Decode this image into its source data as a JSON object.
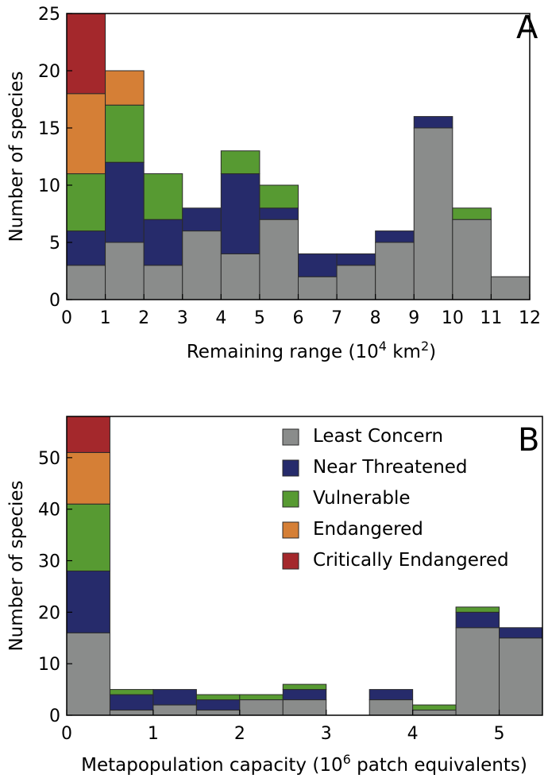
{
  "legend": {
    "entries": [
      {
        "label": "Least Concern",
        "color": "#8a8c8b"
      },
      {
        "label": "Near Threatened",
        "color": "#262b6b"
      },
      {
        "label": "Vulnerable",
        "color": "#579a32"
      },
      {
        "label": "Endangered",
        "color": "#d57f36"
      },
      {
        "label": "Critically Endangered",
        "color": "#a4282c"
      }
    ]
  },
  "chart_data": [
    {
      "type": "bar",
      "stacked": true,
      "panel": "A",
      "xlabel": "Remaining range (10",
      "xlabel_sup1": "4",
      "xlabel_mid": " km",
      "xlabel_sup2": "2",
      "xlabel_end": ")",
      "ylabel": "Number of species",
      "bin_edges": [
        0,
        1,
        2,
        3,
        4,
        5,
        6,
        7,
        8,
        9,
        10,
        11,
        12
      ],
      "xticks": [
        "0",
        "1",
        "2",
        "3",
        "4",
        "5",
        "6",
        "7",
        "8",
        "9",
        "10",
        "11",
        "12"
      ],
      "yticks": [
        "0",
        "5",
        "10",
        "15",
        "20",
        "25"
      ],
      "xlim": [
        0,
        12
      ],
      "ylim": [
        0,
        25
      ],
      "series": [
        {
          "name": "Least Concern",
          "values": [
            3,
            5,
            3,
            6,
            4,
            7,
            2,
            3,
            5,
            15,
            7,
            2
          ]
        },
        {
          "name": "Near Threatened",
          "values": [
            3,
            7,
            4,
            2,
            7,
            1,
            2,
            1,
            1,
            1,
            0,
            0
          ]
        },
        {
          "name": "Vulnerable",
          "values": [
            5,
            5,
            4,
            0,
            2,
            2,
            0,
            0,
            0,
            0,
            1,
            0
          ]
        },
        {
          "name": "Endangered",
          "values": [
            7,
            3,
            0,
            0,
            0,
            0,
            0,
            0,
            0,
            0,
            0,
            0
          ]
        },
        {
          "name": "Critically Endangered",
          "values": [
            7,
            0,
            0,
            0,
            0,
            0,
            0,
            0,
            0,
            0,
            0,
            0
          ]
        }
      ]
    },
    {
      "type": "bar",
      "stacked": true,
      "panel": "B",
      "xlabel": "Metapopulation capacity (10",
      "xlabel_sup1": "6",
      "xlabel_mid": " patch equivalents)",
      "xlabel_sup2": "",
      "xlabel_end": "",
      "ylabel": "Number of species",
      "bin_edges": [
        0,
        0.5,
        1,
        1.5,
        2,
        2.5,
        3,
        3.5,
        4,
        4.5,
        5,
        5.5
      ],
      "xticks": [
        "0",
        "1",
        "2",
        "3",
        "4",
        "5"
      ],
      "xtick_values": [
        0,
        1,
        2,
        3,
        4,
        5
      ],
      "yticks": [
        "0",
        "10",
        "20",
        "30",
        "40",
        "50"
      ],
      "xlim": [
        0,
        5.5
      ],
      "ylim": [
        0,
        58
      ],
      "series": [
        {
          "name": "Least Concern",
          "values": [
            16,
            1,
            2,
            1,
            3,
            3,
            0,
            3,
            1,
            17,
            15
          ]
        },
        {
          "name": "Near Threatened",
          "values": [
            12,
            3,
            3,
            2,
            0,
            2,
            0,
            2,
            0,
            3,
            2
          ]
        },
        {
          "name": "Vulnerable",
          "values": [
            13,
            1,
            0,
            1,
            1,
            1,
            0,
            0,
            1,
            1,
            0
          ]
        },
        {
          "name": "Endangered",
          "values": [
            10,
            0,
            0,
            0,
            0,
            0,
            0,
            0,
            0,
            0,
            0
          ]
        },
        {
          "name": "Critically Endangered",
          "values": [
            7,
            0,
            0,
            0,
            0,
            0,
            0,
            0,
            0,
            0,
            0
          ]
        }
      ]
    }
  ]
}
